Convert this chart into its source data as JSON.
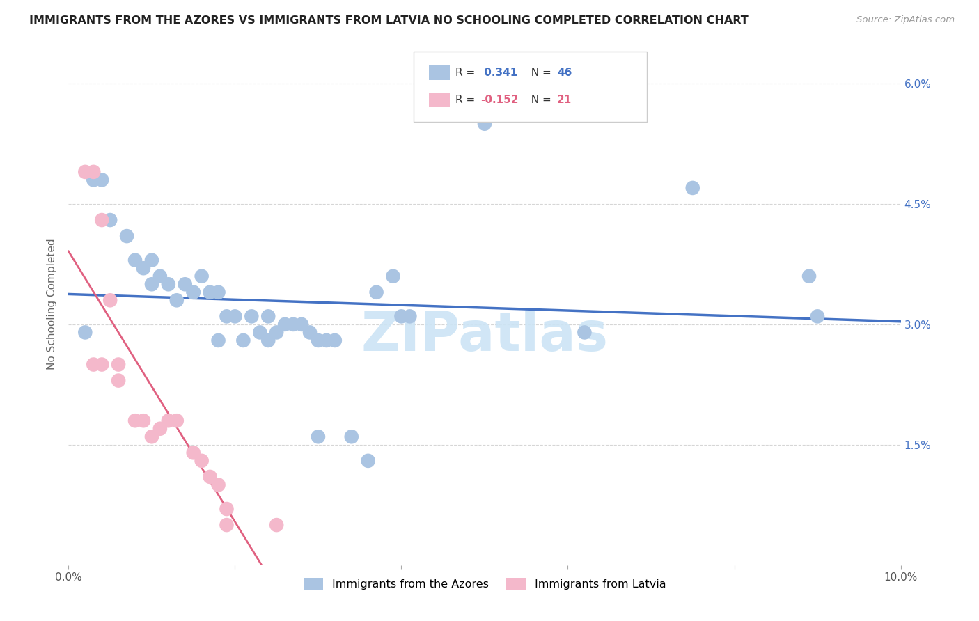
{
  "title": "IMMIGRANTS FROM THE AZORES VS IMMIGRANTS FROM LATVIA NO SCHOOLING COMPLETED CORRELATION CHART",
  "source": "Source: ZipAtlas.com",
  "ylabel": "No Schooling Completed",
  "xlim": [
    0.0,
    0.1
  ],
  "ylim": [
    0.0,
    0.065
  ],
  "xtick_vals": [
    0.0,
    0.02,
    0.04,
    0.06,
    0.08,
    0.1
  ],
  "xtick_labels": [
    "0.0%",
    "",
    "",
    "",
    "",
    "10.0%"
  ],
  "ytick_vals": [
    0.0,
    0.015,
    0.03,
    0.045,
    0.06
  ],
  "ytick_labels": [
    "",
    "1.5%",
    "3.0%",
    "4.5%",
    "6.0%"
  ],
  "r_azores": 0.341,
  "n_azores": 46,
  "r_latvia": -0.152,
  "n_latvia": 21,
  "azores_color": "#aac4e2",
  "latvia_color": "#f4b8cb",
  "azores_line_color": "#4472c4",
  "latvia_line_color": "#e06080",
  "azores_points": [
    [
      0.003,
      0.048
    ],
    [
      0.004,
      0.048
    ],
    [
      0.005,
      0.043
    ],
    [
      0.007,
      0.041
    ],
    [
      0.008,
      0.038
    ],
    [
      0.009,
      0.037
    ],
    [
      0.01,
      0.038
    ],
    [
      0.01,
      0.035
    ],
    [
      0.011,
      0.036
    ],
    [
      0.012,
      0.035
    ],
    [
      0.013,
      0.033
    ],
    [
      0.014,
      0.035
    ],
    [
      0.015,
      0.034
    ],
    [
      0.015,
      0.034
    ],
    [
      0.016,
      0.036
    ],
    [
      0.017,
      0.034
    ],
    [
      0.018,
      0.034
    ],
    [
      0.019,
      0.031
    ],
    [
      0.02,
      0.031
    ],
    [
      0.021,
      0.028
    ],
    [
      0.022,
      0.031
    ],
    [
      0.023,
      0.029
    ],
    [
      0.024,
      0.028
    ],
    [
      0.025,
      0.029
    ],
    [
      0.026,
      0.03
    ],
    [
      0.027,
      0.03
    ],
    [
      0.028,
      0.03
    ],
    [
      0.029,
      0.029
    ],
    [
      0.03,
      0.028
    ],
    [
      0.032,
      0.028
    ],
    [
      0.018,
      0.028
    ],
    [
      0.024,
      0.031
    ],
    [
      0.03,
      0.016
    ],
    [
      0.031,
      0.028
    ],
    [
      0.034,
      0.016
    ],
    [
      0.036,
      0.013
    ],
    [
      0.037,
      0.034
    ],
    [
      0.039,
      0.036
    ],
    [
      0.04,
      0.031
    ],
    [
      0.041,
      0.031
    ],
    [
      0.05,
      0.055
    ],
    [
      0.062,
      0.029
    ],
    [
      0.075,
      0.047
    ],
    [
      0.089,
      0.036
    ],
    [
      0.09,
      0.031
    ],
    [
      0.002,
      0.029
    ]
  ],
  "latvia_points": [
    [
      0.002,
      0.049
    ],
    [
      0.003,
      0.049
    ],
    [
      0.004,
      0.043
    ],
    [
      0.005,
      0.033
    ],
    [
      0.003,
      0.025
    ],
    [
      0.004,
      0.025
    ],
    [
      0.006,
      0.025
    ],
    [
      0.006,
      0.023
    ],
    [
      0.008,
      0.018
    ],
    [
      0.009,
      0.018
    ],
    [
      0.01,
      0.016
    ],
    [
      0.011,
      0.017
    ],
    [
      0.012,
      0.018
    ],
    [
      0.013,
      0.018
    ],
    [
      0.015,
      0.014
    ],
    [
      0.016,
      0.013
    ],
    [
      0.017,
      0.011
    ],
    [
      0.018,
      0.01
    ],
    [
      0.019,
      0.007
    ],
    [
      0.019,
      0.005
    ],
    [
      0.025,
      0.005
    ]
  ]
}
